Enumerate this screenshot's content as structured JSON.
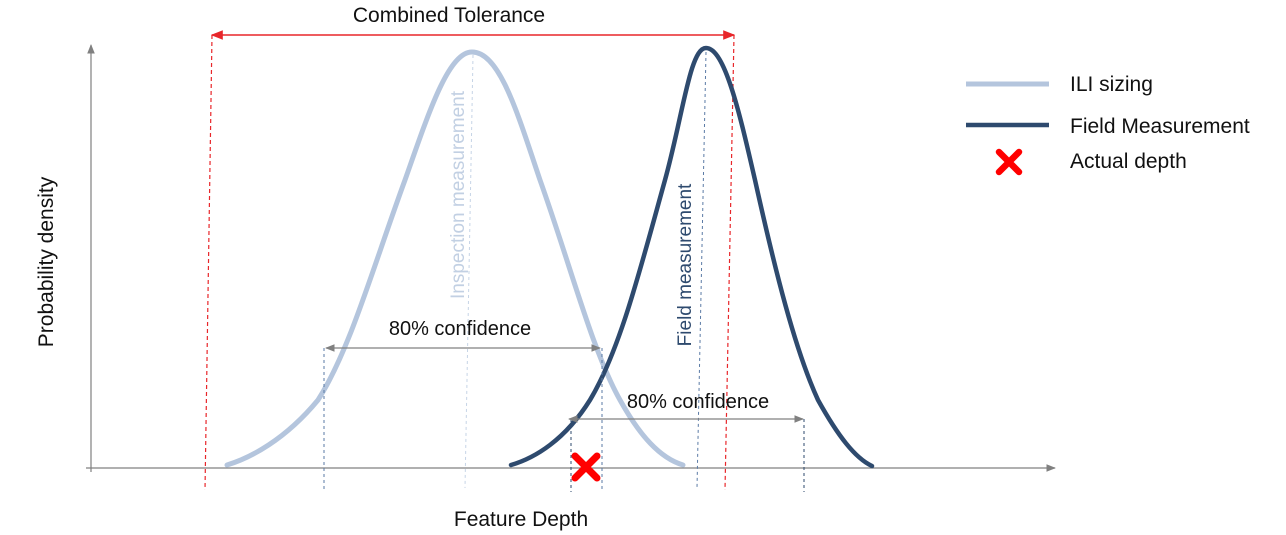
{
  "diagram": {
    "combined_tolerance_label": "Combined Tolerance",
    "x_axis_label": "Feature Depth",
    "y_axis_label": "Probability density",
    "inspection_curve_label": "Inspection measurement",
    "field_curve_label": "Field measurement",
    "confidence_label_left": "80% confidence",
    "confidence_label_right": "80% confidence"
  },
  "legend": {
    "items": [
      {
        "label": "ILI sizing",
        "icon": "light-blue-line",
        "color": "#b4c5dd"
      },
      {
        "label": "Field Measurement",
        "icon": "dark-blue-line",
        "color": "#2e4a6e"
      },
      {
        "label": "Actual depth",
        "icon": "red-x-marker",
        "color": "#ff0000"
      }
    ]
  },
  "colors": {
    "ili_curve": "#b4c5dd",
    "field_curve": "#2e4a6e",
    "tolerance": "#e8262a",
    "axis": "#808080",
    "actual_depth": "#ff0000"
  }
}
